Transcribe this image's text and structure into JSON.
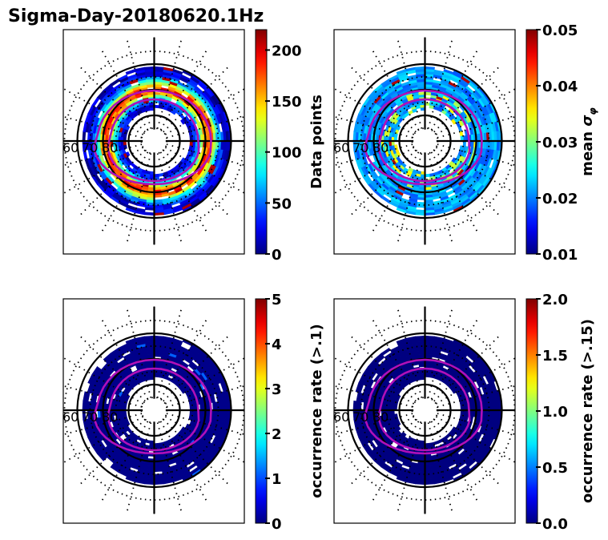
{
  "figure": {
    "title": "Sigma-Day-20180620.1Hz"
  },
  "chart_data": [
    {
      "type": "heatmap",
      "projection": "polar",
      "panel": "top-left",
      "title": "Sigma-Day-20180620.1Hz",
      "lat_labels": [
        "60",
        "70",
        "80"
      ],
      "colorbar": {
        "label": "Data points",
        "range": [
          0,
          220
        ],
        "ticks": [
          0,
          50,
          100,
          150,
          200
        ],
        "tick_labels": [
          "0",
          "50",
          "100",
          "150",
          "200"
        ],
        "colormap": "jet"
      },
      "ring_lat_range": [
        64,
        80
      ],
      "pattern": "counts",
      "value_profile": {
        "inner_edge": 20,
        "peak": 160,
        "outer_edge": 15,
        "max": 220
      }
    },
    {
      "type": "heatmap",
      "projection": "polar",
      "panel": "top-right",
      "lat_labels": [
        "60",
        "70",
        "80"
      ],
      "colorbar": {
        "label": "mean σ_φ",
        "range": [
          0.01,
          0.05
        ],
        "ticks": [
          0.01,
          0.02,
          0.03,
          0.04,
          0.05
        ],
        "tick_labels": [
          "0.01",
          "0.02",
          "0.03",
          "0.04",
          "0.05"
        ],
        "colormap": "jet"
      },
      "ring_lat_range": [
        64,
        80
      ],
      "pattern": "mean",
      "value_profile": {
        "typical": 0.022,
        "max": 0.05
      }
    },
    {
      "type": "heatmap",
      "projection": "polar",
      "panel": "bottom-left",
      "lat_labels": [
        "60",
        "70",
        "80"
      ],
      "colorbar": {
        "label": "occurrence rate (>.1)",
        "range": [
          0,
          5
        ],
        "ticks": [
          0,
          1,
          2,
          3,
          4,
          5
        ],
        "tick_labels": [
          "0",
          "1",
          "2",
          "3",
          "4",
          "5"
        ],
        "colormap": "jet"
      },
      "ring_lat_range": [
        64,
        80
      ],
      "pattern": "occurrence",
      "value_profile": {
        "typical": 0.05,
        "max": 1.1
      }
    },
    {
      "type": "heatmap",
      "projection": "polar",
      "panel": "bottom-right",
      "lat_labels": [
        "60",
        "70",
        "80"
      ],
      "colorbar": {
        "label": "occurrence rate (>.15)",
        "range": [
          0,
          2
        ],
        "ticks": [
          0.0,
          0.5,
          1.0,
          1.5,
          2.0
        ],
        "tick_labels": [
          "0.0",
          "0.5",
          "1.0",
          "1.5",
          "2.0"
        ],
        "colormap": "jet"
      },
      "ring_lat_range": [
        64,
        80
      ],
      "pattern": "occurrence",
      "value_profile": {
        "typical": 0.0,
        "max": 0.0
      }
    }
  ],
  "colors": {
    "oval": "#b010b8",
    "grid": "#000000"
  }
}
